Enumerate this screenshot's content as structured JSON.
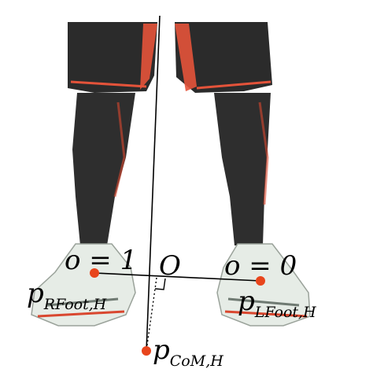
{
  "labels": {
    "origin": "O",
    "right_foot_weight": "o = 1",
    "left_foot_weight": "o = 0",
    "right_foot_point": {
      "main": "p",
      "sub": "RFoot,H"
    },
    "left_foot_point": {
      "main": "p",
      "sub": "LFoot,H"
    },
    "com_point": {
      "main": "p",
      "sub": "CoM,H"
    }
  },
  "colors": {
    "point": "#e8451c",
    "shorts": "#2b2b2b",
    "shorts_accent": "#e4533a",
    "socks": "#2e2e2e",
    "shoe": "#e6ece6",
    "shoe_accent": "#d9472f",
    "line": "#000000"
  }
}
